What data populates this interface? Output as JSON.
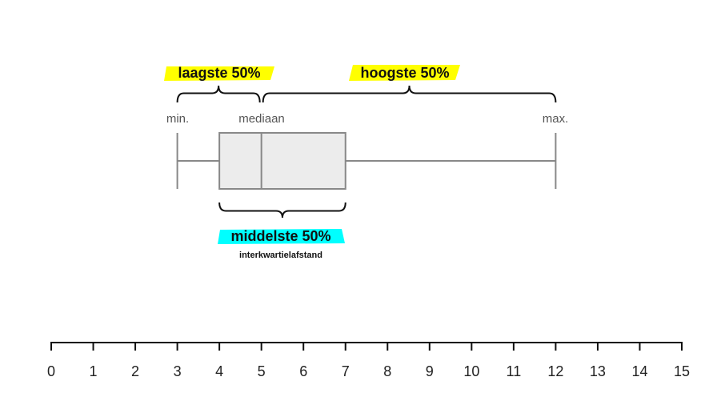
{
  "chart_data": {
    "type": "boxplot",
    "axis": {
      "range": [
        0,
        15
      ],
      "ticks": [
        "0",
        "1",
        "2",
        "3",
        "4",
        "5",
        "6",
        "7",
        "8",
        "9",
        "10",
        "11",
        "12",
        "13",
        "14",
        "15"
      ]
    },
    "box": {
      "min": 3,
      "q1": 4,
      "median": 5,
      "q3": 7,
      "max": 12
    },
    "labels": {
      "min": "min.",
      "median": "mediaan",
      "max": "max."
    },
    "braces": {
      "lower": {
        "label": "laagste 50%",
        "from": 3,
        "to": 5,
        "highlight": "#ffff00"
      },
      "upper": {
        "label": "hoogste 50%",
        "from": 5,
        "to": 12,
        "highlight": "#ffff00"
      },
      "middle": {
        "label": "middelste 50%",
        "sublabel": "interkwartielafstand",
        "from": 4,
        "to": 7,
        "highlight": "#00ffff"
      }
    },
    "colors": {
      "box_fill": "#ececec",
      "box_stroke": "#888888",
      "axis": "#111111",
      "brace": "#111111"
    }
  }
}
